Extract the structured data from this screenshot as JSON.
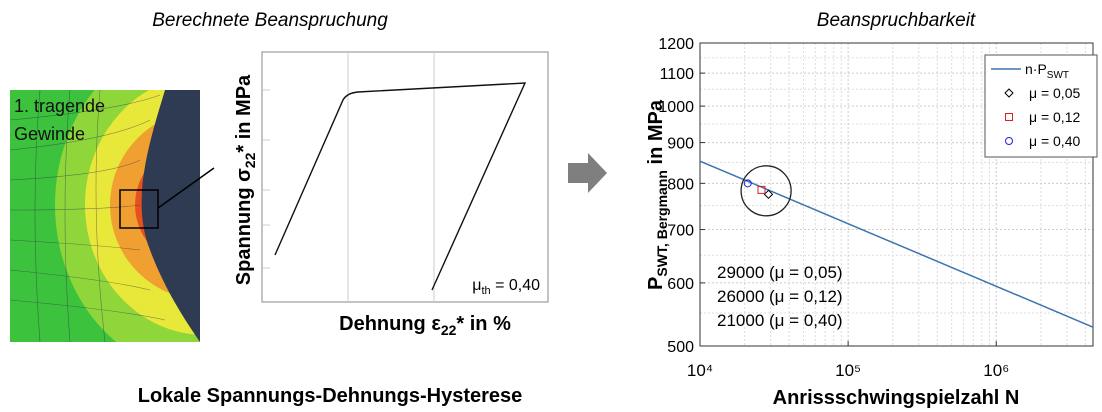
{
  "left_panel": {
    "title": "Berechnete Beanspruchung",
    "fe_label_lines": [
      "1. tragende",
      "Gewinde"
    ],
    "ylabel": {
      "main": "Spannung σ",
      "sub": "22",
      "rest": "* in MPa"
    },
    "xlabel": {
      "main": "Dehnung ε",
      "sub": "22",
      "rest": "* in %"
    },
    "mu_label": {
      "main": "μ",
      "sub": "th",
      "rest": " = 0,40"
    },
    "caption": "Lokale Spannungs-Dehnungs-Hysterese"
  },
  "chart_data": {
    "type": "line",
    "title": "Beanspruchbarkeit",
    "ylabel": {
      "main": "P",
      "sub": "SWT, Bergmann",
      "rest": " in MPa"
    },
    "xlabel": "Anrissschwingspielzahl N",
    "xscale": "log",
    "yscale": "log",
    "grid": true,
    "legend": "upper right",
    "xlim": [
      10000,
      4500000
    ],
    "xticks": [
      {
        "value": 10000,
        "label": "10⁴"
      },
      {
        "value": 100000,
        "label": "10⁵"
      },
      {
        "value": 1000000,
        "label": "10⁶"
      }
    ],
    "ylim": [
      500,
      1200
    ],
    "yticks": [
      500,
      600,
      700,
      800,
      900,
      1000,
      1100,
      1200
    ],
    "series": [
      {
        "name": "n·P",
        "name_sub": "SWT",
        "type": "line",
        "color": "#3b74b0",
        "x": [
          10000,
          4500000
        ],
        "values": [
          853,
          528
        ]
      },
      {
        "name": "μ = 0,05",
        "type": "scatter",
        "marker": "diamond",
        "color": "#000000",
        "x": [
          29000
        ],
        "values": [
          775
        ]
      },
      {
        "name": "μ = 0,12",
        "type": "scatter",
        "marker": "square",
        "color": "#e02020",
        "x": [
          26000
        ],
        "values": [
          785
        ]
      },
      {
        "name": "μ = 0,40",
        "type": "scatter",
        "marker": "circle",
        "color": "#2020e0",
        "x": [
          21000
        ],
        "values": [
          800
        ]
      }
    ],
    "annotations": [
      "29000 (μ = 0,05)",
      "26000 (μ = 0,12)",
      "21000 (μ = 0,40)"
    ]
  }
}
